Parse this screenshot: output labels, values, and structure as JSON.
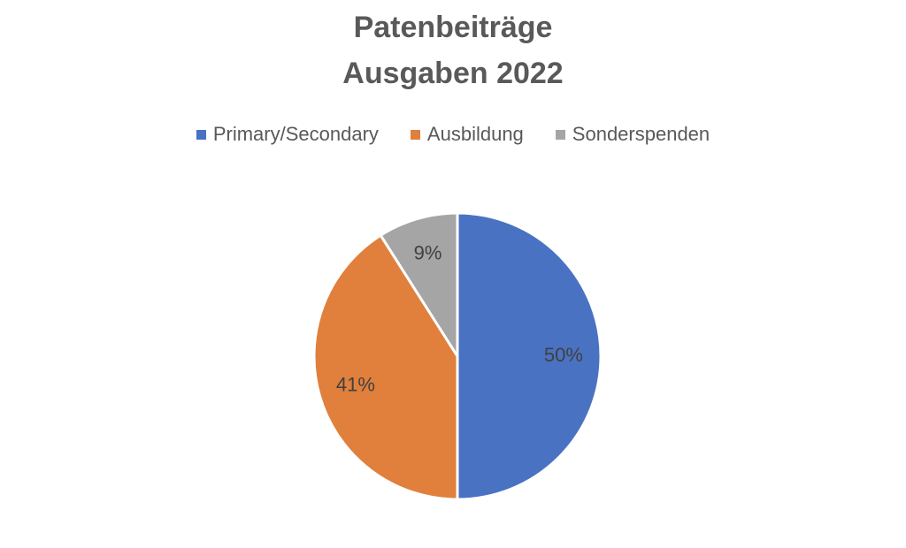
{
  "chart_data": {
    "type": "pie",
    "title": "Patenbeiträge",
    "subtitle": "Ausgaben 2022",
    "legend_position": "top",
    "categories": [
      "Primary/Secondary",
      "Ausbildung",
      "Sonderspenden"
    ],
    "values": [
      50,
      41,
      9
    ],
    "labels": [
      "50%",
      "41%",
      "9%"
    ],
    "colors": [
      "#4a72c2",
      "#e0803c",
      "#a5a5a5"
    ]
  }
}
